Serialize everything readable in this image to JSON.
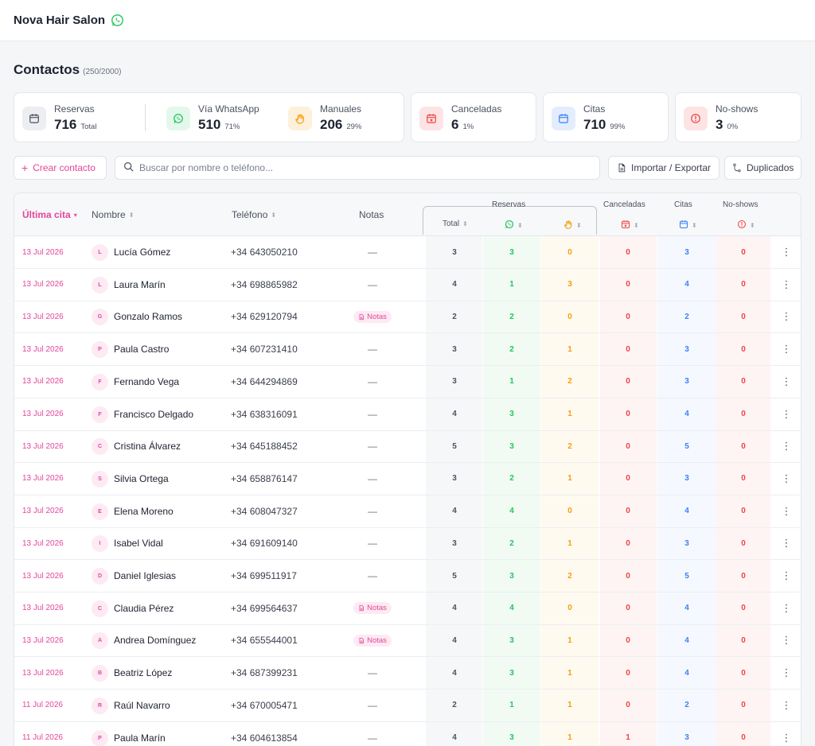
{
  "app": {
    "brand": "Nova Hair Salon",
    "brand_icon": "whatsapp-icon"
  },
  "page": {
    "title": "Contactos",
    "count": "(250/2000)"
  },
  "stats": {
    "reservas": {
      "label": "Reservas",
      "value": "716",
      "sub": "Total",
      "color": "#4b5160"
    },
    "whatsapp": {
      "label": "Vía WhatsApp",
      "value": "510",
      "sub": "71%",
      "color": "#22c55e"
    },
    "manuales": {
      "label": "Manuales",
      "value": "206",
      "sub": "29%",
      "color": "#f59e0b"
    },
    "canceladas": {
      "label": "Canceladas",
      "value": "6",
      "sub": "1%",
      "color": "#ef4444"
    },
    "citas": {
      "label": "Citas",
      "value": "710",
      "sub": "99%",
      "color": "#3b82f6"
    },
    "noshows": {
      "label": "No-shows",
      "value": "3",
      "sub": "0%",
      "color": "#ef4444"
    }
  },
  "toolbar": {
    "create_label": "Crear contacto",
    "search_placeholder": "Buscar por nombre o teléfono...",
    "import_label": "Importar / Exportar",
    "duplicates_label": "Duplicados"
  },
  "table": {
    "headers": {
      "last": "Última cita",
      "name": "Nombre",
      "phone": "Teléfono",
      "notes": "Notas",
      "reservas": "Reservas",
      "total": "Total",
      "canceladas": "Canceladas",
      "citas": "Citas",
      "noshows": "No-shows"
    },
    "notes_badge": "Notas",
    "empty_dash": "—",
    "rows": [
      {
        "date": "13 Jul 2026",
        "initial": "L",
        "name": "Lucía Gómez",
        "phone": "+34 643050210",
        "notes": false,
        "total": "3",
        "wa": "3",
        "man": "0",
        "canc": "0",
        "citas": "3",
        "ns": "0"
      },
      {
        "date": "13 Jul 2026",
        "initial": "L",
        "name": "Laura Marín",
        "phone": "+34 698865982",
        "notes": false,
        "total": "4",
        "wa": "1",
        "man": "3",
        "canc": "0",
        "citas": "4",
        "ns": "0"
      },
      {
        "date": "13 Jul 2026",
        "initial": "G",
        "name": "Gonzalo Ramos",
        "phone": "+34 629120794",
        "notes": true,
        "total": "2",
        "wa": "2",
        "man": "0",
        "canc": "0",
        "citas": "2",
        "ns": "0"
      },
      {
        "date": "13 Jul 2026",
        "initial": "P",
        "name": "Paula Castro",
        "phone": "+34 607231410",
        "notes": false,
        "total": "3",
        "wa": "2",
        "man": "1",
        "canc": "0",
        "citas": "3",
        "ns": "0"
      },
      {
        "date": "13 Jul 2026",
        "initial": "F",
        "name": "Fernando Vega",
        "phone": "+34 644294869",
        "notes": false,
        "total": "3",
        "wa": "1",
        "man": "2",
        "canc": "0",
        "citas": "3",
        "ns": "0"
      },
      {
        "date": "13 Jul 2026",
        "initial": "F",
        "name": "Francisco Delgado",
        "phone": "+34 638316091",
        "notes": false,
        "total": "4",
        "wa": "3",
        "man": "1",
        "canc": "0",
        "citas": "4",
        "ns": "0"
      },
      {
        "date": "13 Jul 2026",
        "initial": "C",
        "name": "Cristina Álvarez",
        "phone": "+34 645188452",
        "notes": false,
        "total": "5",
        "wa": "3",
        "man": "2",
        "canc": "0",
        "citas": "5",
        "ns": "0"
      },
      {
        "date": "13 Jul 2026",
        "initial": "S",
        "name": "Silvia Ortega",
        "phone": "+34 658876147",
        "notes": false,
        "total": "3",
        "wa": "2",
        "man": "1",
        "canc": "0",
        "citas": "3",
        "ns": "0"
      },
      {
        "date": "13 Jul 2026",
        "initial": "E",
        "name": "Elena Moreno",
        "phone": "+34 608047327",
        "notes": false,
        "total": "4",
        "wa": "4",
        "man": "0",
        "canc": "0",
        "citas": "4",
        "ns": "0"
      },
      {
        "date": "13 Jul 2026",
        "initial": "I",
        "name": "Isabel Vidal",
        "phone": "+34 691609140",
        "notes": false,
        "total": "3",
        "wa": "2",
        "man": "1",
        "canc": "0",
        "citas": "3",
        "ns": "0"
      },
      {
        "date": "13 Jul 2026",
        "initial": "D",
        "name": "Daniel Iglesias",
        "phone": "+34 699511917",
        "notes": false,
        "total": "5",
        "wa": "3",
        "man": "2",
        "canc": "0",
        "citas": "5",
        "ns": "0"
      },
      {
        "date": "13 Jul 2026",
        "initial": "C",
        "name": "Claudia Pérez",
        "phone": "+34 699564637",
        "notes": true,
        "total": "4",
        "wa": "4",
        "man": "0",
        "canc": "0",
        "citas": "4",
        "ns": "0"
      },
      {
        "date": "13 Jul 2026",
        "initial": "A",
        "name": "Andrea Domínguez",
        "phone": "+34 655544001",
        "notes": true,
        "total": "4",
        "wa": "3",
        "man": "1",
        "canc": "0",
        "citas": "4",
        "ns": "0"
      },
      {
        "date": "13 Jul 2026",
        "initial": "B",
        "name": "Beatriz López",
        "phone": "+34 687399231",
        "notes": false,
        "total": "4",
        "wa": "3",
        "man": "1",
        "canc": "0",
        "citas": "4",
        "ns": "0"
      },
      {
        "date": "11 Jul 2026",
        "initial": "R",
        "name": "Raúl Navarro",
        "phone": "+34 670005471",
        "notes": false,
        "total": "2",
        "wa": "1",
        "man": "1",
        "canc": "0",
        "citas": "2",
        "ns": "0"
      },
      {
        "date": "11 Jul 2026",
        "initial": "P",
        "name": "Paula Marín",
        "phone": "+34 604613854",
        "notes": false,
        "total": "4",
        "wa": "3",
        "man": "1",
        "canc": "1",
        "citas": "3",
        "ns": "0"
      }
    ]
  },
  "colors": {
    "accent": "#e5469a",
    "total": "#4b5160",
    "whatsapp": "#22c55e",
    "manual": "#f59e0b",
    "cancel": "#ef4444",
    "citas": "#3b82f6",
    "noshow": "#ef4444"
  }
}
